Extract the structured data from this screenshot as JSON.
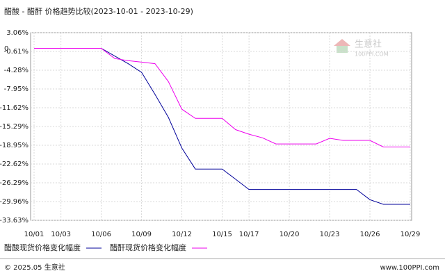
{
  "chart_data": {
    "type": "line",
    "title": "醋酸 - 醋酐 价格趋势比较(2023-10-01 - 2023-10-29)",
    "zero_label": "0",
    "categories": [
      "10/01",
      null,
      "10/03",
      null,
      null,
      "10/06",
      null,
      null,
      "10/09",
      null,
      null,
      "10/12",
      null,
      null,
      "10/15",
      null,
      "10/17",
      null,
      null,
      "10/20",
      null,
      null,
      "10/23",
      null,
      null,
      "10/26",
      null,
      null,
      "10/29"
    ],
    "series": [
      {
        "name": "醋酸现货价格变化幅度",
        "color": "#000099",
        "values": [
          0,
          0,
          0,
          0,
          0,
          0,
          -1.5,
          -3,
          -4.7,
          -9,
          -13.5,
          -19.5,
          -23.6,
          -23.6,
          -23.6,
          -25.6,
          -27.6,
          -27.6,
          -27.6,
          -27.6,
          -27.6,
          -27.6,
          -27.6,
          -27.6,
          -27.6,
          -29.6,
          -30.5,
          -30.5,
          -30.5
        ]
      },
      {
        "name": "醋酐现货价格变化幅度",
        "color": "#ee00ee",
        "values": [
          0,
          0,
          0,
          0,
          0,
          0,
          -2,
          -2.4,
          -2.7,
          -3,
          -6.5,
          -11.9,
          -13.7,
          -13.7,
          -13.7,
          -15.9,
          -16.8,
          -17.5,
          -18.7,
          -18.7,
          -18.7,
          -18.7,
          -17.6,
          -18,
          -18,
          -18,
          -19.3,
          -19.3,
          -19.3
        ]
      }
    ],
    "ylim": [
      -33.63,
      3.06
    ],
    "yticks": [
      {
        "value": 3.06,
        "label": "3.06%"
      },
      {
        "value": -0.61,
        "label": "-0.61%"
      },
      {
        "value": -4.28,
        "label": "-4.28%"
      },
      {
        "value": -7.95,
        "label": "-7.95%"
      },
      {
        "value": -11.62,
        "label": "-11.62%"
      },
      {
        "value": -15.29,
        "label": "-15.29%"
      },
      {
        "value": -18.95,
        "label": "-18.95%"
      },
      {
        "value": -22.62,
        "label": "-22.62%"
      },
      {
        "value": -26.29,
        "label": "-26.29%"
      },
      {
        "value": -29.96,
        "label": "-29.96%"
      },
      {
        "value": -33.63,
        "label": "-33.63%"
      }
    ],
    "grid": true
  },
  "watermark": {
    "name": "生意社",
    "site": "100PPI.COM"
  },
  "footer": {
    "copyright": "© 2025.05 生意社",
    "site": "www.100PPI.com"
  }
}
